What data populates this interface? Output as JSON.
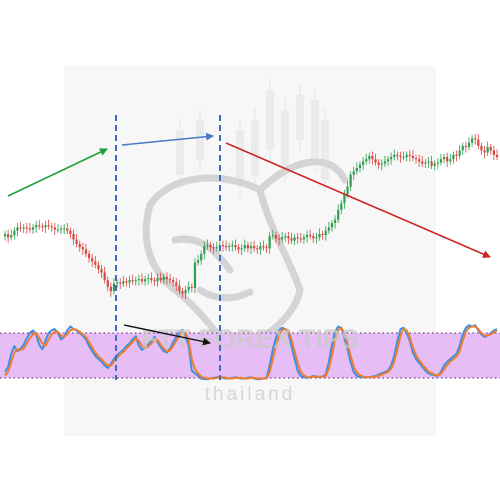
{
  "watermark": {
    "brand": "FTT FOREX TIPS",
    "sub": "thailand"
  },
  "colors": {
    "bull_candle": "#2e9e4f",
    "bear_candle": "#d9463e",
    "fast_line": "#3d8fe0",
    "slow_line": "#ef7d30",
    "oversold_band": "#e7bdf5",
    "divider": "#3f6cc2",
    "arrow_green": "#1fa03a",
    "arrow_blue": "#4a78c8",
    "arrow_red": "#cc2424",
    "arrow_black": "#111111",
    "level_line": "#7a3c8a"
  },
  "chart_data": [
    {
      "type": "candlestick",
      "title": "",
      "series": [
        {
          "close": [
            200,
            197,
            199,
            203,
            206,
            205,
            206,
            205,
            204,
            206,
            208,
            207,
            206,
            208,
            207,
            206,
            204,
            204,
            205,
            205,
            203,
            200,
            195,
            191,
            188,
            186,
            182,
            178,
            175,
            172,
            168,
            165,
            158,
            152,
            148,
            155,
            156,
            155,
            157,
            156,
            158,
            157,
            158,
            159,
            157,
            159,
            160,
            158,
            157,
            160,
            158,
            161,
            159,
            158,
            156,
            153,
            148,
            146,
            149,
            152,
            151,
            174,
            176,
            182,
            189,
            190,
            188,
            187,
            188,
            190,
            189,
            188,
            189,
            190,
            188,
            186,
            187,
            190,
            187,
            189,
            187,
            186,
            189,
            188,
            187,
            198,
            199,
            196,
            195,
            197,
            198,
            196,
            194,
            197,
            196,
            195,
            197,
            199,
            198,
            196,
            197,
            200,
            199,
            203,
            206,
            210,
            213,
            222,
            228,
            236,
            243,
            254,
            257,
            260,
            263,
            266,
            268,
            271,
            268,
            265,
            263,
            264,
            266,
            268,
            270,
            272,
            271,
            270,
            270,
            272,
            271,
            269,
            268,
            266,
            264,
            265,
            266,
            262,
            264,
            265,
            268,
            270,
            266,
            268,
            272,
            271,
            276,
            280,
            279,
            283,
            287,
            286,
            280,
            276,
            274,
            279,
            276,
            272,
            270
          ]
        }
      ],
      "annotations": [
        "uptrend arrow",
        "higher high arrow",
        "downtrend arrow"
      ]
    },
    {
      "type": "line",
      "title": "",
      "ylim": [
        0,
        100
      ],
      "levels": [
        80,
        20
      ],
      "series": [
        {
          "name": "",
          "role": "fast",
          "values": [
            20,
            28,
            48,
            60,
            52,
            56,
            62,
            72,
            80,
            84,
            78,
            62,
            55,
            68,
            80,
            84,
            86,
            80,
            70,
            74,
            84,
            90,
            86,
            84,
            80,
            76,
            70,
            60,
            52,
            45,
            40,
            36,
            30,
            26,
            33,
            40,
            46,
            50,
            54,
            60,
            64,
            70,
            75,
            60,
            54,
            58,
            62,
            68,
            74,
            66,
            58,
            52,
            50,
            56,
            66,
            74,
            82,
            85,
            74,
            60,
            22,
            18,
            14,
            10,
            9,
            9,
            10,
            11,
            12,
            12,
            11,
            10,
            10,
            11,
            12,
            11,
            10,
            10,
            11,
            12,
            10,
            9,
            9,
            10,
            11,
            30,
            55,
            72,
            84,
            88,
            86,
            80,
            60,
            40,
            22,
            14,
            12,
            11,
            12,
            14,
            13,
            12,
            13,
            16,
            35,
            62,
            82,
            90,
            88,
            72,
            55,
            35,
            20,
            14,
            12,
            12,
            12,
            12,
            13,
            14,
            16,
            18,
            20,
            22,
            30,
            45,
            68,
            86,
            88,
            80,
            68,
            50,
            40,
            34,
            28,
            22,
            18,
            16,
            15,
            14,
            20,
            30,
            36,
            40,
            44,
            48,
            60,
            78,
            88,
            92,
            90,
            92,
            84,
            78,
            74,
            76,
            80,
            84,
            86
          ]
        },
        {
          "name": "",
          "role": "slow",
          "values": [
            15,
            20,
            35,
            50,
            55,
            54,
            56,
            64,
            72,
            78,
            80,
            72,
            64,
            60,
            70,
            78,
            82,
            82,
            76,
            74,
            78,
            84,
            86,
            85,
            82,
            78,
            74,
            66,
            58,
            50,
            44,
            40,
            34,
            30,
            30,
            36,
            42,
            47,
            51,
            56,
            61,
            66,
            72,
            68,
            60,
            57,
            59,
            64,
            70,
            69,
            62,
            56,
            52,
            53,
            60,
            68,
            76,
            82,
            80,
            68,
            40,
            24,
            18,
            13,
            11,
            10,
            10,
            10,
            11,
            12,
            12,
            11,
            10,
            10,
            11,
            11,
            11,
            10,
            10,
            11,
            11,
            10,
            10,
            10,
            10,
            20,
            40,
            60,
            76,
            84,
            86,
            84,
            70,
            52,
            34,
            20,
            15,
            12,
            12,
            13,
            13,
            13,
            13,
            14,
            25,
            46,
            70,
            84,
            88,
            80,
            64,
            45,
            28,
            19,
            15,
            13,
            12,
            12,
            12,
            13,
            14,
            16,
            18,
            20,
            25,
            36,
            55,
            76,
            86,
            84,
            74,
            58,
            46,
            38,
            32,
            26,
            21,
            18,
            16,
            15,
            17,
            24,
            31,
            36,
            40,
            44,
            52,
            68,
            82,
            88,
            90,
            90,
            86,
            80,
            76,
            76,
            78,
            81,
            84
          ]
        }
      ]
    }
  ]
}
